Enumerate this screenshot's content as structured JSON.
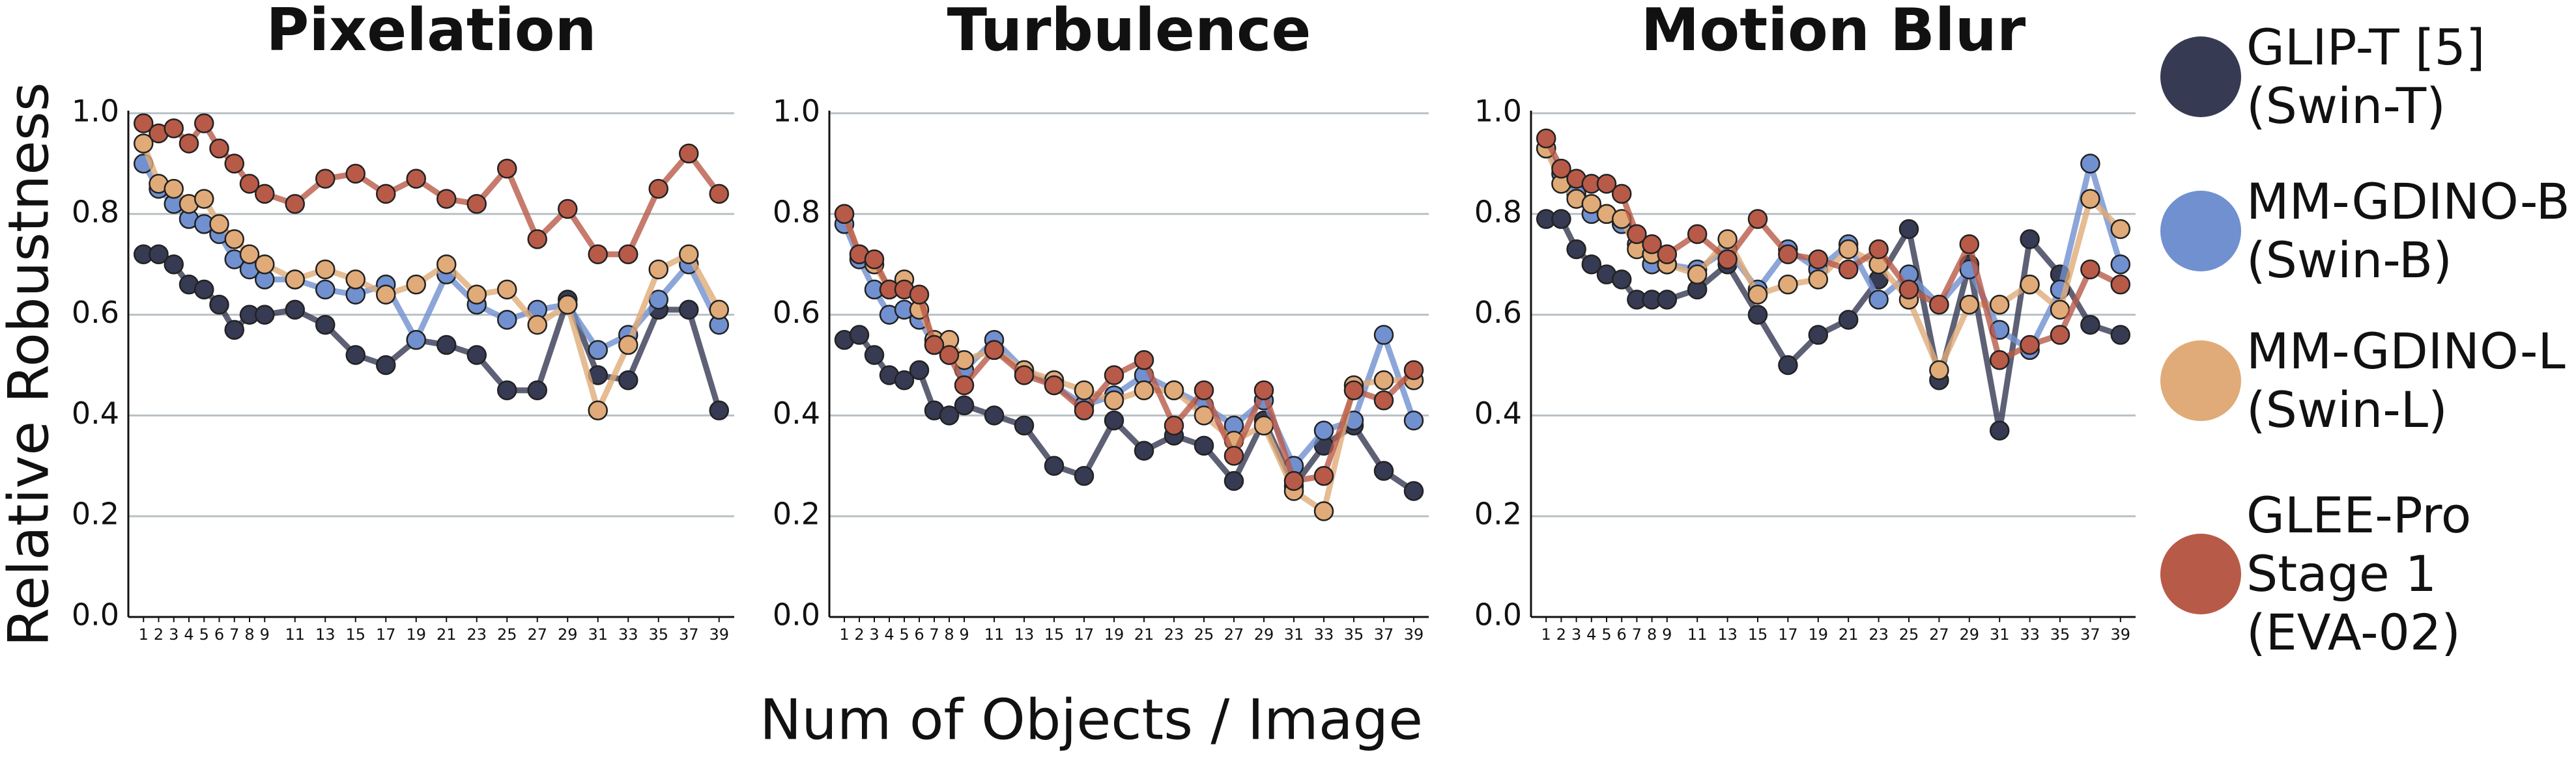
{
  "chart_data": [
    {
      "type": "line",
      "title": "Pixelation",
      "x": [
        1,
        2,
        3,
        4,
        5,
        6,
        7,
        8,
        9,
        11,
        13,
        15,
        17,
        19,
        21,
        23,
        25,
        27,
        29,
        31,
        33,
        35,
        37,
        39
      ],
      "xlim": [
        0,
        40
      ],
      "xticks": [
        1,
        2,
        3,
        4,
        5,
        6,
        7,
        8,
        9,
        11,
        13,
        15,
        17,
        19,
        21,
        23,
        25,
        27,
        29,
        31,
        33,
        35,
        37,
        39
      ],
      "ylim": [
        0,
        1
      ],
      "yticks": [
        {
          "value": 0,
          "label": "0.0"
        },
        0.2,
        0.4,
        0.6,
        0.8,
        {
          "value": 1,
          "label": "1.0"
        }
      ],
      "grid": true,
      "series": [
        {
          "name": "GLIP-T [5]\n(Swin-T)",
          "color": "#363a52",
          "values": [
            0.72,
            0.72,
            0.7,
            0.66,
            0.65,
            0.62,
            0.57,
            0.6,
            0.6,
            0.61,
            0.58,
            0.52,
            0.5,
            0.55,
            0.54,
            0.52,
            0.45,
            0.45,
            0.63,
            0.48,
            0.47,
            0.61,
            0.61,
            0.41
          ]
        },
        {
          "name": "MM-GDINO-B\n(Swin-B)",
          "color": "#7090d0",
          "values": [
            0.9,
            0.85,
            0.82,
            0.79,
            0.78,
            0.76,
            0.71,
            0.69,
            0.67,
            0.67,
            0.65,
            0.64,
            0.66,
            0.55,
            0.68,
            0.62,
            0.59,
            0.61,
            0.62,
            0.53,
            0.56,
            0.63,
            0.7,
            0.58
          ]
        },
        {
          "name": "MM-GDINO-L\n(Swin-L)",
          "color": "#e0ab78",
          "values": [
            0.94,
            0.86,
            0.85,
            0.82,
            0.83,
            0.78,
            0.75,
            0.72,
            0.7,
            0.67,
            0.69,
            0.67,
            0.64,
            0.66,
            0.7,
            0.64,
            0.65,
            0.58,
            0.62,
            0.41,
            0.54,
            0.69,
            0.72,
            0.61
          ]
        },
        {
          "name": "GLEE-Pro\nStage 1\n(EVA-02)",
          "color": "#b85a48",
          "values": [
            0.98,
            0.96,
            0.97,
            0.94,
            0.98,
            0.93,
            0.9,
            0.86,
            0.84,
            0.82,
            0.87,
            0.88,
            0.84,
            0.87,
            0.83,
            0.82,
            0.89,
            0.75,
            0.81,
            0.72,
            0.72,
            0.85,
            0.92,
            0.84
          ]
        }
      ]
    },
    {
      "type": "line",
      "title": "Turbulence",
      "x": [
        1,
        2,
        3,
        4,
        5,
        6,
        7,
        8,
        9,
        11,
        13,
        15,
        17,
        19,
        21,
        23,
        25,
        27,
        29,
        31,
        33,
        35,
        37,
        39
      ],
      "xlim": [
        0,
        40
      ],
      "xticks": [
        1,
        2,
        3,
        4,
        5,
        6,
        7,
        8,
        9,
        11,
        13,
        15,
        17,
        19,
        21,
        23,
        25,
        27,
        29,
        31,
        33,
        35,
        37,
        39
      ],
      "ylim": [
        0,
        1
      ],
      "yticks": [
        {
          "value": 0,
          "label": "0.0"
        },
        0.2,
        0.4,
        0.6,
        0.8,
        {
          "value": 1,
          "label": "1.0"
        }
      ],
      "grid": true,
      "series": [
        {
          "name": "GLIP-T [5]\n(Swin-T)",
          "color": "#363a52",
          "values": [
            0.55,
            0.56,
            0.52,
            0.48,
            0.47,
            0.49,
            0.41,
            0.4,
            0.42,
            0.4,
            0.38,
            0.3,
            0.28,
            0.39,
            0.33,
            0.36,
            0.34,
            0.27,
            0.39,
            0.26,
            0.34,
            0.38,
            0.29,
            0.25
          ]
        },
        {
          "name": "MM-GDINO-B\n(Swin-B)",
          "color": "#7090d0",
          "values": [
            0.78,
            0.71,
            0.65,
            0.6,
            0.61,
            0.59,
            0.54,
            0.52,
            0.49,
            0.55,
            0.49,
            0.46,
            0.42,
            0.44,
            0.48,
            0.45,
            0.42,
            0.38,
            0.43,
            0.3,
            0.37,
            0.39,
            0.56,
            0.39
          ]
        },
        {
          "name": "MM-GDINO-L\n(Swin-L)",
          "color": "#e0ab78",
          "values": [
            0.8,
            0.72,
            0.7,
            0.65,
            0.67,
            0.61,
            0.55,
            0.55,
            0.51,
            0.53,
            0.49,
            0.47,
            0.45,
            0.43,
            0.45,
            0.45,
            0.4,
            0.35,
            0.38,
            0.25,
            0.21,
            0.46,
            0.47,
            0.47
          ]
        },
        {
          "name": "GLEE-Pro\nStage 1\n(EVA-02)",
          "color": "#b85a48",
          "values": [
            0.8,
            0.72,
            0.71,
            0.65,
            0.65,
            0.64,
            0.54,
            0.52,
            0.46,
            0.53,
            0.48,
            0.46,
            0.41,
            0.48,
            0.51,
            0.38,
            0.45,
            0.32,
            0.45,
            0.27,
            0.28,
            0.45,
            0.43,
            0.49
          ]
        }
      ]
    },
    {
      "type": "line",
      "title": "Motion Blur",
      "x": [
        1,
        2,
        3,
        4,
        5,
        6,
        7,
        8,
        9,
        11,
        13,
        15,
        17,
        19,
        21,
        23,
        25,
        27,
        29,
        31,
        33,
        35,
        37,
        39
      ],
      "xlim": [
        0,
        40
      ],
      "xticks": [
        1,
        2,
        3,
        4,
        5,
        6,
        7,
        8,
        9,
        11,
        13,
        15,
        17,
        19,
        21,
        23,
        25,
        27,
        29,
        31,
        33,
        35,
        37,
        39
      ],
      "ylim": [
        0,
        1
      ],
      "yticks": [
        {
          "value": 0,
          "label": "0.0"
        },
        0.2,
        0.4,
        0.6,
        0.8,
        {
          "value": 1,
          "label": "1.0"
        }
      ],
      "grid": true,
      "series": [
        {
          "name": "GLIP-T [5]\n(Swin-T)",
          "color": "#363a52",
          "values": [
            0.79,
            0.79,
            0.73,
            0.7,
            0.68,
            0.67,
            0.63,
            0.63,
            0.63,
            0.65,
            0.7,
            0.6,
            0.5,
            0.56,
            0.59,
            0.67,
            0.77,
            0.47,
            0.7,
            0.37,
            0.75,
            0.68,
            0.58,
            0.56
          ]
        },
        {
          "name": "MM-GDINO-B\n(Swin-B)",
          "color": "#7090d0",
          "values": [
            0.93,
            0.88,
            0.84,
            0.8,
            0.8,
            0.78,
            0.74,
            0.7,
            0.7,
            0.69,
            0.73,
            0.65,
            0.73,
            0.69,
            0.74,
            0.63,
            0.68,
            0.62,
            0.69,
            0.57,
            0.53,
            0.65,
            0.9,
            0.7
          ]
        },
        {
          "name": "MM-GDINO-L\n(Swin-L)",
          "color": "#e0ab78",
          "values": [
            0.93,
            0.86,
            0.83,
            0.82,
            0.8,
            0.79,
            0.73,
            0.72,
            0.7,
            0.68,
            0.75,
            0.64,
            0.66,
            0.67,
            0.73,
            0.7,
            0.63,
            0.49,
            0.62,
            0.62,
            0.66,
            0.61,
            0.83,
            0.77
          ]
        },
        {
          "name": "GLEE-Pro\nStage 1\n(EVA-02)",
          "color": "#b85a48",
          "values": [
            0.95,
            0.89,
            0.87,
            0.86,
            0.86,
            0.84,
            0.76,
            0.74,
            0.72,
            0.76,
            0.71,
            0.79,
            0.72,
            0.71,
            0.69,
            0.73,
            0.65,
            0.62,
            0.74,
            0.51,
            0.54,
            0.56,
            0.69,
            0.66
          ]
        }
      ]
    }
  ],
  "y_label": "Relative Robustness",
  "x_label": "Num of Objects / Image"
}
